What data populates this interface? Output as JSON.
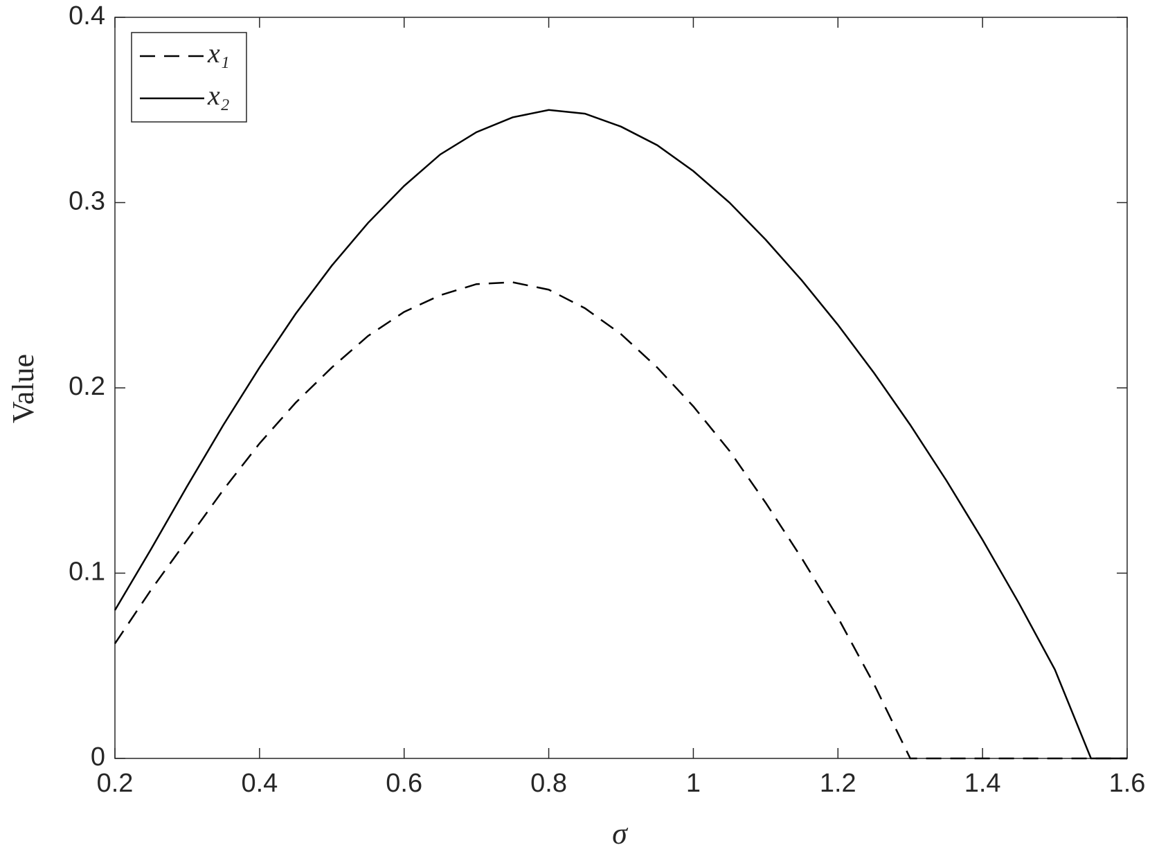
{
  "chart_data": {
    "type": "line",
    "xlabel": "σ",
    "ylabel": "Value",
    "x": [
      0.2,
      0.25,
      0.3,
      0.35,
      0.4,
      0.45,
      0.5,
      0.55,
      0.6,
      0.65,
      0.7,
      0.75,
      0.8,
      0.85,
      0.9,
      0.95,
      1.0,
      1.05,
      1.1,
      1.15,
      1.2,
      1.25,
      1.3,
      1.35,
      1.4,
      1.45,
      1.5,
      1.55,
      1.6
    ],
    "series": [
      {
        "name": "x₁",
        "color": "#000000",
        "dash": true,
        "values": [
          0.062,
          0.091,
          0.118,
          0.145,
          0.17,
          0.192,
          0.211,
          0.228,
          0.241,
          0.25,
          0.256,
          0.257,
          0.253,
          0.243,
          0.229,
          0.211,
          0.19,
          0.166,
          0.138,
          0.108,
          0.076,
          0.04,
          0,
          0,
          0,
          0,
          0,
          0,
          0
        ]
      },
      {
        "name": "x₂",
        "color": "#000000",
        "dash": false,
        "values": [
          0.08,
          0.113,
          0.147,
          0.18,
          0.211,
          0.24,
          0.266,
          0.289,
          0.309,
          0.326,
          0.338,
          0.346,
          0.35,
          0.348,
          0.341,
          0.331,
          0.317,
          0.3,
          0.28,
          0.258,
          0.234,
          0.208,
          0.18,
          0.15,
          0.118,
          0.084,
          0.048,
          0,
          0
        ]
      }
    ],
    "xlim": [
      0.2,
      1.6
    ],
    "xticks": [
      0.2,
      0.4,
      0.6,
      0.8,
      1,
      1.2,
      1.4,
      1.6
    ],
    "ylim": [
      0,
      0.4
    ],
    "yticks": [
      0,
      0.1,
      0.2,
      0.3,
      0.4
    ],
    "legend": "upper left"
  }
}
